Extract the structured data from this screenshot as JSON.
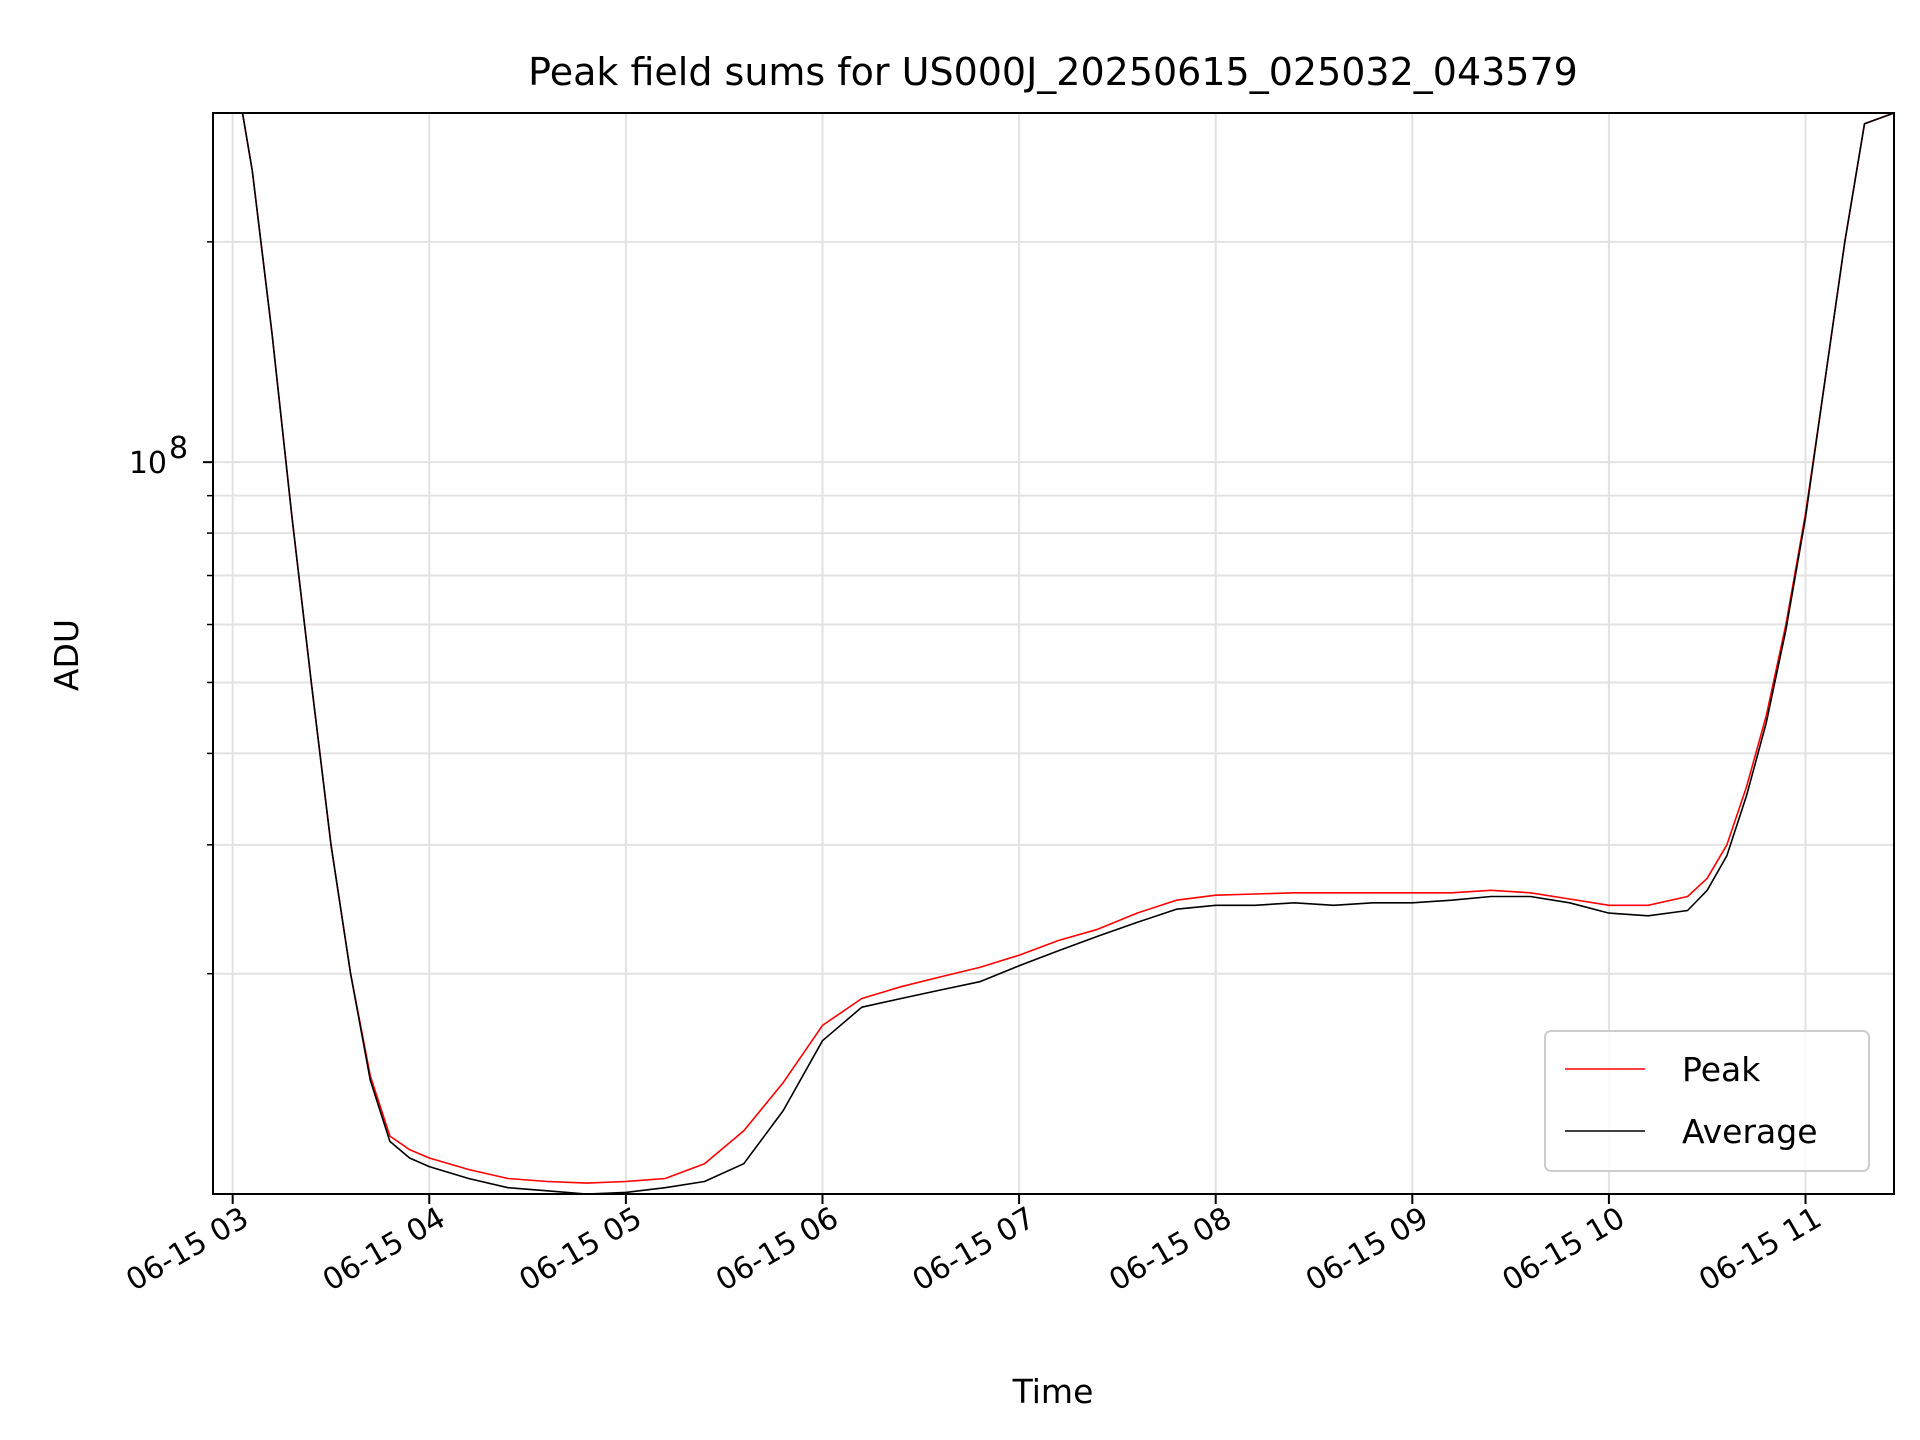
{
  "chart_data": {
    "type": "line",
    "title": "Peak field sums for US000J_20250615_025032_043579",
    "xlabel": "Time",
    "ylabel": "ADU",
    "yscale": "log",
    "xlim": [
      2.9,
      11.45
    ],
    "ylim": [
      10000000.0,
      300000000.0
    ],
    "x_unit": "hours on 06-15",
    "x_ticks": [
      {
        "value": 3,
        "label": "06-15 03"
      },
      {
        "value": 4,
        "label": "06-15 04"
      },
      {
        "value": 5,
        "label": "06-15 05"
      },
      {
        "value": 6,
        "label": "06-15 06"
      },
      {
        "value": 7,
        "label": "06-15 07"
      },
      {
        "value": 8,
        "label": "06-15 08"
      },
      {
        "value": 9,
        "label": "06-15 09"
      },
      {
        "value": 10,
        "label": "06-15 10"
      },
      {
        "value": 11,
        "label": "06-15 11"
      }
    ],
    "y_major_ticks": [
      {
        "value": 100000000,
        "base": "10",
        "exp": "8"
      }
    ],
    "y_minor_ticks": [
      20000000,
      30000000,
      40000000,
      50000000,
      60000000,
      70000000,
      80000000,
      90000000,
      200000000
    ],
    "grid": true,
    "legend_position": "lower right",
    "series": [
      {
        "name": "Peak",
        "color": "#ff0000",
        "x": [
          2.9,
          3.05,
          3.1,
          3.2,
          3.3,
          3.4,
          3.5,
          3.6,
          3.7,
          3.8,
          3.9,
          4.0,
          4.2,
          4.4,
          4.6,
          4.8,
          5.0,
          5.2,
          5.4,
          5.6,
          5.8,
          6.0,
          6.2,
          6.4,
          6.6,
          6.8,
          7.0,
          7.2,
          7.4,
          7.6,
          7.8,
          8.0,
          8.2,
          8.4,
          8.6,
          8.8,
          9.0,
          9.2,
          9.4,
          9.6,
          9.8,
          10.0,
          10.2,
          10.4,
          10.5,
          10.6,
          10.7,
          10.8,
          10.9,
          11.0,
          11.1,
          11.2,
          11.3,
          11.45
        ],
        "y": [
          300000000.0,
          300000000.0,
          250000000.0,
          150000000.0,
          85000000.0,
          50000000.0,
          30000000.0,
          20000000.0,
          14500000.0,
          12000000.0,
          11500000.0,
          11200000.0,
          10800000.0,
          10500000.0,
          10400000.0,
          10350000.0,
          10400000.0,
          10500000.0,
          11000000.0,
          12200000.0,
          14200000.0,
          17000000.0,
          18500000.0,
          19200000.0,
          19800000.0,
          20400000.0,
          21200000.0,
          22200000.0,
          23000000.0,
          24200000.0,
          25200000.0,
          25600000.0,
          25700000.0,
          25800000.0,
          25800000.0,
          25800000.0,
          25800000.0,
          25800000.0,
          26000000.0,
          25800000.0,
          25300000.0,
          24800000.0,
          24800000.0,
          25500000.0,
          27000000.0,
          30000000.0,
          36000000.0,
          45000000.0,
          60000000.0,
          85000000.0,
          130000000.0,
          200000000.0,
          290000000.0,
          300000000.0
        ]
      },
      {
        "name": "Average",
        "color": "#000000",
        "x": [
          2.9,
          3.05,
          3.1,
          3.2,
          3.3,
          3.4,
          3.5,
          3.6,
          3.7,
          3.8,
          3.9,
          4.0,
          4.2,
          4.4,
          4.6,
          4.8,
          5.0,
          5.2,
          5.4,
          5.6,
          5.8,
          6.0,
          6.2,
          6.4,
          6.6,
          6.8,
          7.0,
          7.2,
          7.4,
          7.6,
          7.8,
          8.0,
          8.2,
          8.4,
          8.6,
          8.8,
          9.0,
          9.2,
          9.4,
          9.6,
          9.8,
          10.0,
          10.2,
          10.4,
          10.5,
          10.6,
          10.7,
          10.8,
          10.9,
          11.0,
          11.1,
          11.2,
          11.3,
          11.45
        ],
        "y": [
          300000000.0,
          300000000.0,
          250000000.0,
          150000000.0,
          85000000.0,
          50000000.0,
          30000000.0,
          20000000.0,
          14300000.0,
          11800000.0,
          11200000.0,
          10900000.0,
          10500000.0,
          10200000.0,
          10100000.0,
          10000000.0,
          10050000.0,
          10200000.0,
          10400000.0,
          11000000.0,
          13000000.0,
          16200000.0,
          18000000.0,
          18500000.0,
          19000000.0,
          19500000.0,
          20500000.0,
          21500000.0,
          22500000.0,
          23500000.0,
          24500000.0,
          24800000.0,
          24800000.0,
          25000000.0,
          24800000.0,
          25000000.0,
          25000000.0,
          25200000.0,
          25500000.0,
          25500000.0,
          25000000.0,
          24200000.0,
          24000000.0,
          24400000.0,
          26000000.0,
          29000000.0,
          35000000.0,
          44000000.0,
          59000000.0,
          84000000.0,
          130000000.0,
          200000000.0,
          290000000.0,
          300000000.0
        ]
      }
    ]
  }
}
